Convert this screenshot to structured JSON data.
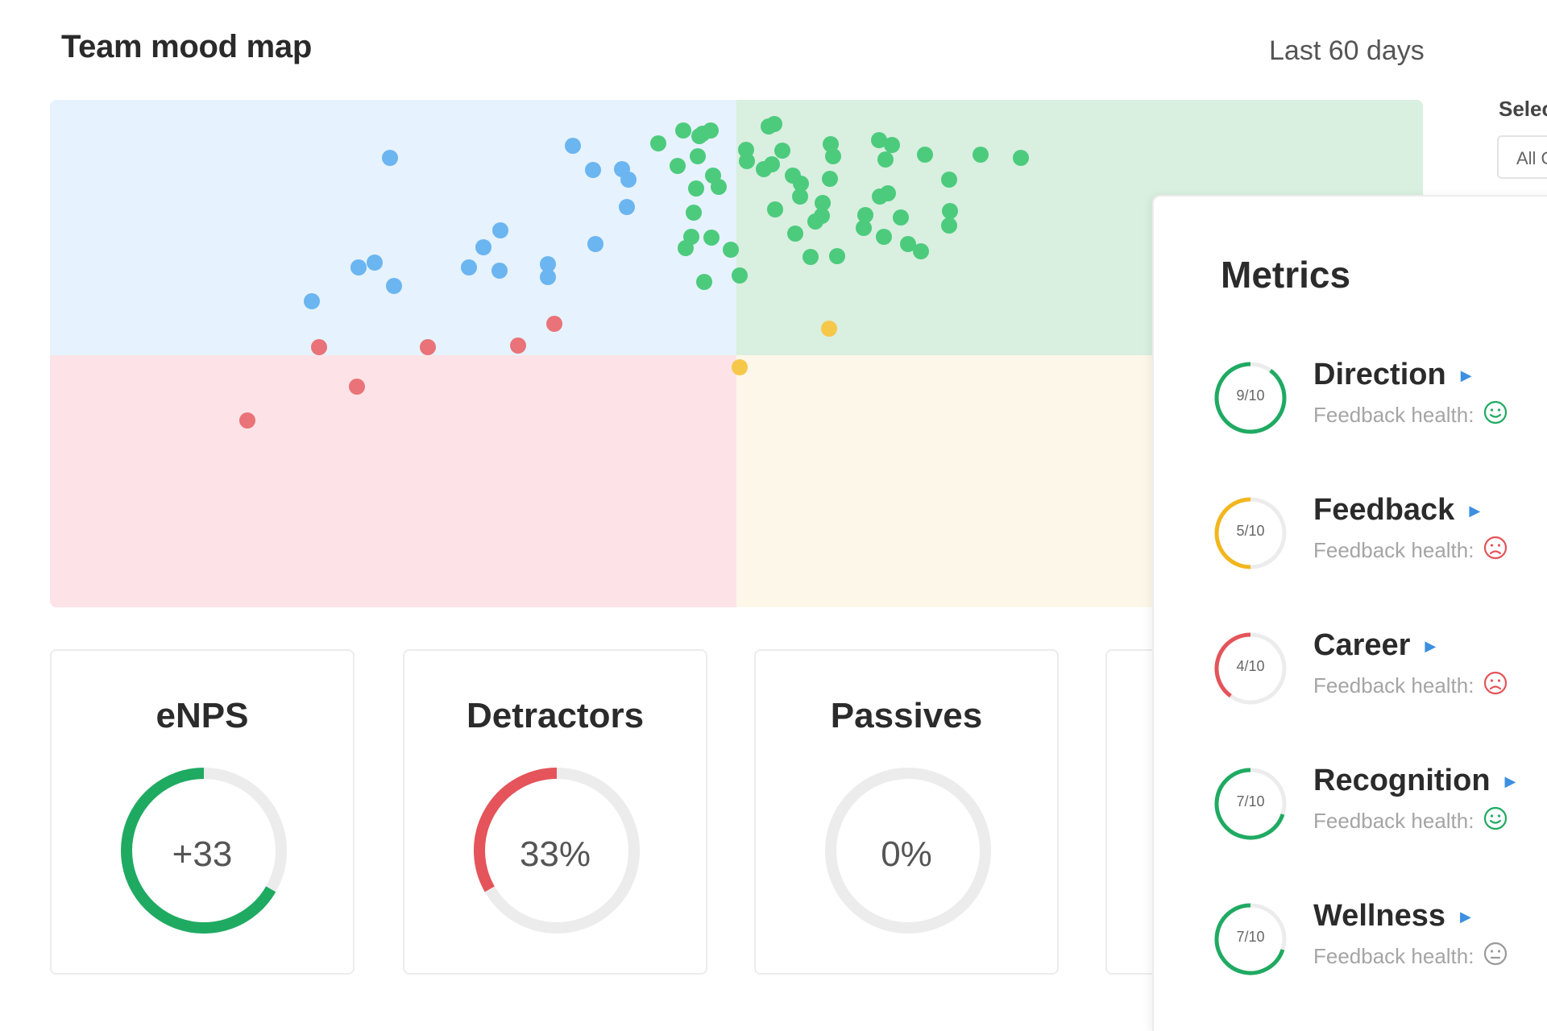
{
  "header": {
    "title": "Team mood map",
    "range": "Last 60 days"
  },
  "filter": {
    "label": "Selec",
    "value": "All C"
  },
  "colors": {
    "dot_blue": "#6bb5f0",
    "dot_green": "#4ccb7d",
    "dot_red": "#e97378",
    "dot_yellow": "#f6c84a",
    "ring_green": "#1faa62",
    "ring_red": "#e4545a",
    "ring_yellow": "#f2b61e",
    "ring_track": "#ececec"
  },
  "mood_map": {
    "points": {
      "blue": [
        [
          1,
          2
        ],
        [
          2,
          4
        ],
        [
          3,
          6
        ],
        [
          4,
          8
        ]
      ],
      "green": [
        [
          1,
          2
        ],
        [
          2,
          4
        ]
      ],
      "red": [
        [
          1,
          2
        ]
      ],
      "yellow": [
        [
          1,
          2
        ],
        [
          2,
          4
        ]
      ]
    }
  },
  "stats": [
    {
      "title": "eNPS",
      "value": "+33",
      "fraction": 0.667,
      "color": "green"
    },
    {
      "title": "Detractors",
      "value": "33%",
      "fraction": 0.333,
      "color": "red"
    },
    {
      "title": "Passives",
      "value": "0%",
      "fraction": 0,
      "color": "none"
    }
  ],
  "metrics": {
    "title": "Metrics",
    "health_label": "Feedback health:",
    "items": [
      {
        "name": "Direction",
        "score": "9/10",
        "fraction": 0.9,
        "color": "green",
        "health": "happy"
      },
      {
        "name": "Feedback",
        "score": "5/10",
        "fraction": 0.5,
        "color": "yellow",
        "health": "sad"
      },
      {
        "name": "Career",
        "score": "4/10",
        "fraction": 0.4,
        "color": "red",
        "health": "sad"
      },
      {
        "name": "Recognition",
        "score": "7/10",
        "fraction": 0.7,
        "color": "green",
        "health": "happy"
      },
      {
        "name": "Wellness",
        "score": "7/10",
        "fraction": 0.7,
        "color": "green",
        "health": "neutral"
      }
    ]
  }
}
